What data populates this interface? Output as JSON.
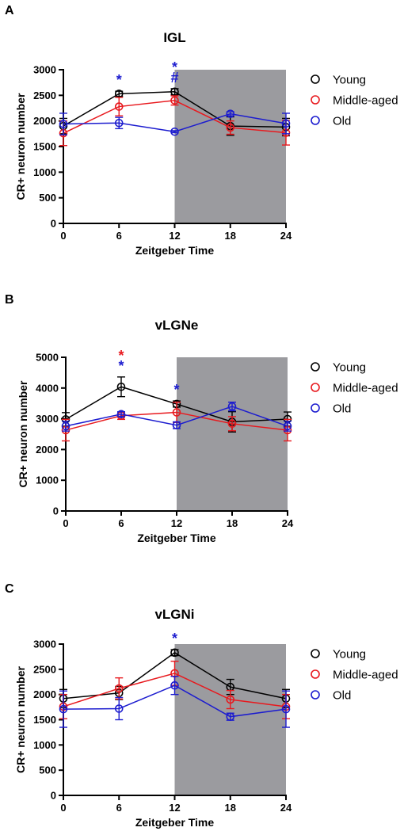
{
  "chart_data": [
    {
      "panel": "A",
      "type": "line",
      "title": "IGL",
      "xlabel": "Zeitgeber Time",
      "ylabel": "CR+ neuron number",
      "x": [
        0,
        6,
        12,
        18,
        24
      ],
      "xlim": [
        0,
        24
      ],
      "ylim": [
        0,
        3000
      ],
      "yticks": [
        0,
        500,
        1000,
        1500,
        2000,
        2500,
        3000
      ],
      "dark_phase": [
        12,
        24
      ],
      "legend_position": "right",
      "series": [
        {
          "name": "Young",
          "color": "#000000",
          "values": [
            1900,
            2530,
            2570,
            1900,
            1880
          ],
          "errors": [
            150,
            50,
            60,
            180,
            170
          ]
        },
        {
          "name": "Middle-aged",
          "color": "#e8191e",
          "values": [
            1760,
            2280,
            2400,
            1870,
            1770
          ],
          "errors": [
            240,
            180,
            90,
            130,
            240
          ]
        },
        {
          "name": "Old",
          "color": "#1c1ccf",
          "values": [
            1940,
            1960,
            1790,
            2140,
            1950
          ],
          "errors": [
            210,
            110,
            20,
            40,
            200
          ]
        }
      ],
      "annotations": [
        {
          "x": 6,
          "text": "*",
          "color": "#1c1ccf",
          "level": 1
        },
        {
          "x": 12,
          "text": "*",
          "color": "#1c1ccf",
          "level": 2
        },
        {
          "x": 12,
          "text": "#",
          "color": "#1c1ccf",
          "level": 1
        }
      ]
    },
    {
      "panel": "B",
      "type": "line",
      "title": "vLGNe",
      "xlabel": "Zeitgeber Time",
      "ylabel": "CR+ neuron number",
      "x": [
        0,
        6,
        12,
        18,
        24
      ],
      "xlim": [
        0,
        24
      ],
      "ylim": [
        0,
        5000
      ],
      "yticks": [
        0,
        1000,
        2000,
        3000,
        4000,
        5000
      ],
      "dark_phase": [
        12,
        24
      ],
      "legend_position": "right",
      "series": [
        {
          "name": "Young",
          "color": "#000000",
          "values": [
            2980,
            4040,
            3480,
            2900,
            2990
          ],
          "errors": [
            220,
            320,
            100,
            330,
            230
          ]
        },
        {
          "name": "Middle-aged",
          "color": "#e8191e",
          "values": [
            2630,
            3100,
            3210,
            2840,
            2630
          ],
          "errors": [
            350,
            120,
            330,
            230,
            350
          ]
        },
        {
          "name": "Old",
          "color": "#1c1ccf",
          "values": [
            2760,
            3150,
            2790,
            3400,
            2760
          ],
          "errors": [
            160,
            80,
            110,
            140,
            160
          ]
        }
      ],
      "annotations": [
        {
          "x": 6,
          "text": "*",
          "color": "#e8191e",
          "level": 2
        },
        {
          "x": 6,
          "text": "*",
          "color": "#1c1ccf",
          "level": 1
        },
        {
          "x": 12,
          "text": "*",
          "color": "#1c1ccf",
          "level": 1
        }
      ]
    },
    {
      "panel": "C",
      "type": "line",
      "title": "vLGNi",
      "xlabel": "Zeitgeber Time",
      "ylabel": "CR+ neuron number",
      "x": [
        0,
        6,
        12,
        18,
        24
      ],
      "xlim": [
        0,
        24
      ],
      "ylim": [
        0,
        3000
      ],
      "yticks": [
        0,
        500,
        1000,
        1500,
        2000,
        2500,
        3000
      ],
      "dark_phase": [
        12,
        24
      ],
      "legend_position": "right",
      "series": [
        {
          "name": "Young",
          "color": "#000000",
          "values": [
            1920,
            2030,
            2830,
            2150,
            1920
          ],
          "errors": [
            180,
            130,
            60,
            150,
            180
          ]
        },
        {
          "name": "Middle-aged",
          "color": "#e8191e",
          "values": [
            1760,
            2120,
            2420,
            1900,
            1760
          ],
          "errors": [
            240,
            210,
            240,
            180,
            240
          ]
        },
        {
          "name": "Old",
          "color": "#1c1ccf",
          "values": [
            1710,
            1720,
            2180,
            1560,
            1710
          ],
          "errors": [
            360,
            220,
            180,
            70,
            360
          ]
        }
      ],
      "annotations": [
        {
          "x": 12,
          "text": "*",
          "color": "#1c1ccf",
          "level": 1
        }
      ]
    }
  ]
}
